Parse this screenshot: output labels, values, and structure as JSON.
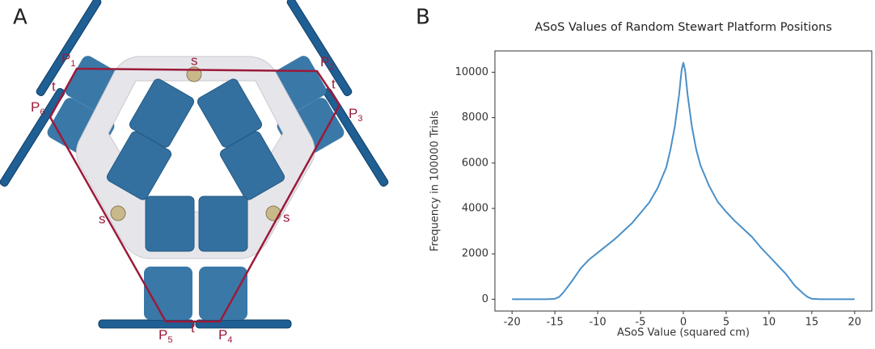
{
  "panels": [
    "A",
    "B"
  ],
  "diagram": {
    "points": [
      {
        "letter": "P",
        "sub": "1"
      },
      {
        "letter": "P",
        "sub": "2"
      },
      {
        "letter": "P",
        "sub": "3"
      },
      {
        "letter": "P",
        "sub": "4"
      },
      {
        "letter": "P",
        "sub": "5"
      },
      {
        "letter": "P",
        "sub": "6"
      }
    ],
    "side_labels": [
      "s",
      "s",
      "s",
      "t",
      "t",
      "t"
    ]
  },
  "chart_data": {
    "type": "line",
    "title": "ASoS Values of Random Stewart Platform Positions",
    "x_label": "ASoS Value (squared cm)",
    "y_label": "Frequency in 100000 Trials",
    "x": [
      -20,
      -16,
      -15,
      -14.5,
      -14,
      -13,
      -12,
      -11,
      -10,
      -8,
      -6,
      -5,
      -4,
      -3,
      -2,
      -1.5,
      -1,
      -0.5,
      -0.2,
      0,
      0.2,
      0.5,
      1,
      1.5,
      2,
      3,
      4,
      5,
      6,
      7,
      8,
      9,
      10,
      11,
      12,
      12.5,
      13,
      14,
      14.5,
      15,
      16,
      20
    ],
    "values": [
      0,
      0,
      20,
      100,
      300,
      800,
      1350,
      1750,
      2050,
      2650,
      3350,
      3800,
      4250,
      4900,
      5800,
      6600,
      7600,
      9000,
      10100,
      10420,
      10100,
      9000,
      7600,
      6600,
      5900,
      5000,
      4300,
      3850,
      3450,
      3100,
      2750,
      2300,
      1900,
      1500,
      1100,
      850,
      600,
      250,
      100,
      20,
      0,
      0
    ],
    "color": "#4a90c8",
    "xlim": [
      -22,
      22
    ],
    "ylim": [
      -520,
      10940
    ],
    "xticks": [
      -20,
      -15,
      -10,
      -5,
      0,
      5,
      10,
      15,
      20
    ],
    "yticks": [
      0,
      2000,
      4000,
      6000,
      8000,
      10000
    ]
  }
}
